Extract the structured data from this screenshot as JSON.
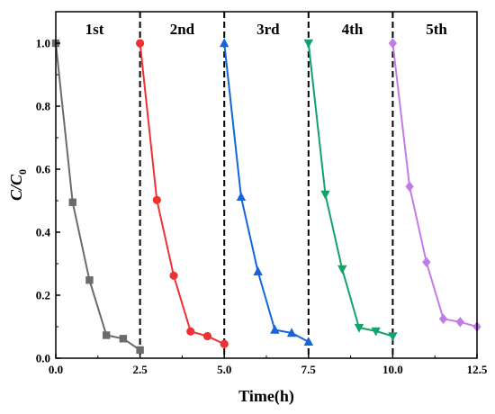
{
  "chart_data": {
    "type": "line",
    "xlabel": "Time(h)",
    "ylabel": {
      "main": "C/C",
      "sub": "0"
    },
    "xlim": [
      0,
      12.5
    ],
    "ylim": [
      0,
      1.1
    ],
    "x_ticks": [
      "0.0",
      "2.5",
      "5.0",
      "7.5",
      "10.0",
      "12.5"
    ],
    "y_ticks": [
      "0.0",
      "0.2",
      "0.4",
      "0.6",
      "0.8",
      "1.0"
    ],
    "grid": false,
    "separators_x": [
      2.5,
      5.0,
      7.5,
      10.0
    ],
    "cycle_labels": [
      {
        "text": "1st",
        "x": 1.15
      },
      {
        "text": "2nd",
        "x": 3.75
      },
      {
        "text": "3rd",
        "x": 6.3
      },
      {
        "text": "4th",
        "x": 8.8
      },
      {
        "text": "5th",
        "x": 11.3
      }
    ],
    "series": [
      {
        "color": "#6b6b6b",
        "marker": "square",
        "x": [
          0,
          0.5,
          1.0,
          1.5,
          2.0,
          2.5
        ],
        "y": [
          1.0,
          0.495,
          0.248,
          0.073,
          0.062,
          0.026
        ]
      },
      {
        "color": "#ee3131",
        "marker": "circle",
        "x": [
          2.5,
          3.0,
          3.5,
          4.0,
          4.5,
          5.0
        ],
        "y": [
          1.0,
          0.502,
          0.262,
          0.085,
          0.07,
          0.045
        ]
      },
      {
        "color": "#1565d8",
        "marker": "triangle-up",
        "x": [
          5.0,
          5.5,
          6.0,
          6.5,
          7.0,
          7.5
        ],
        "y": [
          1.0,
          0.512,
          0.275,
          0.09,
          0.08,
          0.052
        ]
      },
      {
        "color": "#12a36a",
        "marker": "triangle-down",
        "x": [
          7.5,
          8.0,
          8.5,
          9.0,
          9.5,
          10.0
        ],
        "y": [
          1.0,
          0.52,
          0.283,
          0.097,
          0.086,
          0.07
        ]
      },
      {
        "color": "#c27ce8",
        "marker": "diamond",
        "x": [
          10.0,
          10.5,
          11.0,
          11.5,
          12.0,
          12.5
        ],
        "y": [
          1.0,
          0.545,
          0.305,
          0.125,
          0.115,
          0.1
        ]
      }
    ]
  }
}
